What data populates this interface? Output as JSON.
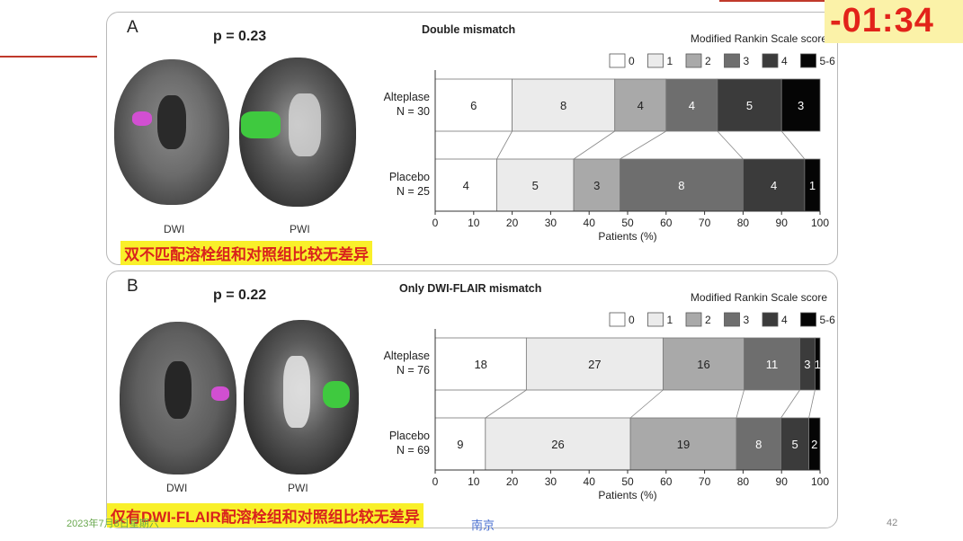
{
  "timer": "-01:34",
  "page_number": "42",
  "footer": {
    "date": "2023年7月8日星期六",
    "city": "南京"
  },
  "panels": [
    {
      "letter": "A",
      "p_value": "p = 0.23",
      "chart_title": "Double mismatch",
      "image_labels": [
        "DWI",
        "PWI"
      ],
      "caption": "双不匹配溶栓组和对照组比较无差异"
    },
    {
      "letter": "B",
      "p_value": "p = 0.22",
      "chart_title": "Only DWI-FLAIR mismatch",
      "image_labels": [
        "DWI",
        "PWI"
      ],
      "caption": "仅有DWI-FLAIR配溶栓组和对照组比较无差异"
    }
  ],
  "chart_data": [
    {
      "type": "bar",
      "orientation": "horizontal-stacked-percent",
      "title": "Double mismatch",
      "legend_title": "Modified Rankin Scale score",
      "legend": [
        "0",
        "1",
        "2",
        "3",
        "4",
        "5-6"
      ],
      "colors": [
        "#ffffff",
        "#ebebeb",
        "#a9a9a9",
        "#6e6e6e",
        "#3b3b3b",
        "#050505"
      ],
      "xlabel": "Patients (%)",
      "xlim": [
        0,
        100
      ],
      "xticks": [
        "0",
        "10",
        "20",
        "30",
        "40",
        "50",
        "60",
        "70",
        "80",
        "90",
        "100"
      ],
      "groups": [
        {
          "label": "Alteplase",
          "n": "N = 30",
          "counts": [
            6,
            8,
            4,
            4,
            5,
            3
          ]
        },
        {
          "label": "Placebo",
          "n": "N = 25",
          "counts": [
            4,
            5,
            3,
            8,
            4,
            1
          ]
        }
      ]
    },
    {
      "type": "bar",
      "orientation": "horizontal-stacked-percent",
      "title": "Only DWI-FLAIR mismatch",
      "legend_title": "Modified Rankin Scale score",
      "legend": [
        "0",
        "1",
        "2",
        "3",
        "4",
        "5-6"
      ],
      "colors": [
        "#ffffff",
        "#ebebeb",
        "#a9a9a9",
        "#6e6e6e",
        "#3b3b3b",
        "#050505"
      ],
      "xlabel": "Patients (%)",
      "xlim": [
        0,
        100
      ],
      "xticks": [
        "0",
        "10",
        "20",
        "30",
        "40",
        "50",
        "60",
        "70",
        "80",
        "90",
        "100"
      ],
      "groups": [
        {
          "label": "Alteplase",
          "n": "N = 76",
          "counts": [
            18,
            27,
            16,
            11,
            3,
            1
          ]
        },
        {
          "label": "Placebo",
          "n": "N = 69",
          "counts": [
            9,
            26,
            19,
            8,
            5,
            2
          ]
        }
      ]
    }
  ]
}
